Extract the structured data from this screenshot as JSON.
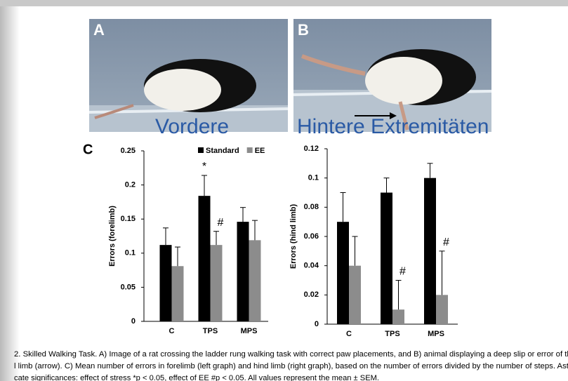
{
  "panel_labels": [
    "A",
    "B",
    "C"
  ],
  "overlay_texts": [
    "Vordere",
    "Hintere Extremitäten"
  ],
  "caption": [
    "2.  Skilled Walking Task. A) Image of a rat crossing the ladder rung walking task with correct paw placements, and B) animal displaying a deep slip or error of the",
    "l limb (arrow). C) Mean number of errors in forelimb (left graph) and hind limb (right graph), based on the number of errors divided by the number of steps. Aster",
    "cate significances: effect of stress *p < 0.05, effect of EE #p < 0.05. All values represent the mean ± SEM."
  ],
  "chart_data": [
    {
      "type": "bar",
      "ylabel": "Errors (forelimb)",
      "categories": [
        "C",
        "TPS",
        "MPS"
      ],
      "series": [
        {
          "name": "Standard",
          "color": "#000000",
          "values": [
            0.112,
            0.184,
            0.146
          ],
          "errors": [
            0.025,
            0.03,
            0.021
          ]
        },
        {
          "name": "EE",
          "color": "#8c8c8c",
          "values": [
            0.081,
            0.112,
            0.119
          ],
          "errors": [
            0.028,
            0.02,
            0.029
          ]
        }
      ],
      "ylim": [
        0,
        0.25
      ],
      "yticks": [
        0,
        0.05,
        0.1,
        0.15,
        0.2,
        0.25
      ],
      "legend": true,
      "annotations": [
        {
          "text": "*",
          "series": "Standard",
          "category": "TPS"
        },
        {
          "text": "#",
          "series": "EE",
          "category": "TPS"
        }
      ]
    },
    {
      "type": "bar",
      "ylabel": "Errors (hind limb)",
      "categories": [
        "C",
        "TPS",
        "MPS"
      ],
      "series": [
        {
          "name": "Standard",
          "color": "#000000",
          "values": [
            0.07,
            0.09,
            0.1
          ],
          "errors": [
            0.02,
            0.01,
            0.01
          ]
        },
        {
          "name": "EE",
          "color": "#8c8c8c",
          "values": [
            0.04,
            0.01,
            0.02
          ],
          "errors": [
            0.02,
            0.02,
            0.03
          ]
        }
      ],
      "ylim": [
        0,
        0.12
      ],
      "yticks": [
        0,
        0.02,
        0.04,
        0.06,
        0.08,
        0.1,
        0.12
      ],
      "legend": false,
      "annotations": [
        {
          "text": "#",
          "series": "EE",
          "category": "TPS"
        },
        {
          "text": "#",
          "series": "EE",
          "category": "MPS"
        }
      ]
    }
  ]
}
